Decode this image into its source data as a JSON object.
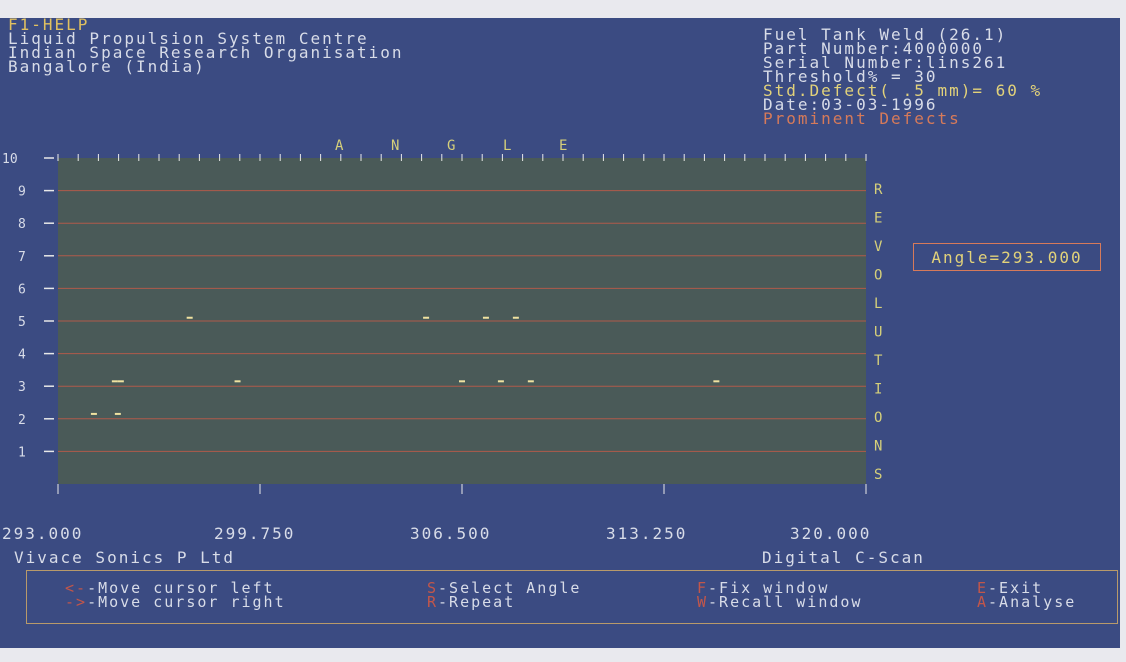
{
  "header": {
    "help": "F1-HELP",
    "line1": "Liquid Propulsion System Centre",
    "line2": "Indian Space Research Organisation",
    "line3": "Bangalore (India)"
  },
  "info": {
    "title": "Fuel Tank Weld (26.1)",
    "part": "Part Number:4000000",
    "serial": "Serial Number:lins261",
    "threshold": "Threshold% =  30",
    "defect": "Std.Defect( .5 mm)= 60 %",
    "date": "Date:03-03-1996",
    "prominent": "Prominent Defects"
  },
  "angle_readout": "Angle=293.000",
  "chart_data": {
    "type": "scatter",
    "title_top": "A N G L E",
    "right_label": "REVOLUTIONS",
    "right_letters": [
      "R",
      "E",
      "V",
      "O",
      "L",
      "U",
      "T",
      "I",
      "O",
      "N",
      "S"
    ],
    "top_letters": [
      "A",
      "N",
      "G",
      "L",
      "E"
    ],
    "x_ticks": [
      "293.000",
      "299.750",
      "306.500",
      "313.250",
      "320.000"
    ],
    "y_ticks": [
      "10",
      "9",
      "8",
      "7",
      "6",
      "5",
      "4",
      "3",
      "2",
      "1"
    ],
    "xlim": [
      293.0,
      320.0
    ],
    "ylim": [
      0,
      10
    ],
    "grid_lines": [
      1,
      2,
      3,
      4,
      5,
      6,
      7,
      8,
      9
    ],
    "points": [
      {
        "x": 294.2,
        "y": 2.15
      },
      {
        "x": 295.0,
        "y": 2.15
      },
      {
        "x": 294.9,
        "y": 3.15
      },
      {
        "x": 295.1,
        "y": 3.15
      },
      {
        "x": 297.4,
        "y": 5.1
      },
      {
        "x": 299.0,
        "y": 3.15
      },
      {
        "x": 305.3,
        "y": 5.1
      },
      {
        "x": 306.5,
        "y": 3.15
      },
      {
        "x": 307.3,
        "y": 5.1
      },
      {
        "x": 308.3,
        "y": 5.1
      },
      {
        "x": 307.8,
        "y": 3.15
      },
      {
        "x": 308.8,
        "y": 3.15
      },
      {
        "x": 315.0,
        "y": 3.15
      }
    ]
  },
  "footer": {
    "left": "Vivace Sonics P Ltd",
    "right": "Digital C-Scan"
  },
  "keys": [
    {
      "mark": "<-",
      "label": "-Move cursor left"
    },
    {
      "mark": "->",
      "label": "-Move cursor right"
    },
    {
      "mark": "S",
      "label": "-Select Angle"
    },
    {
      "mark": "R",
      "label": "-Repeat"
    },
    {
      "mark": "F",
      "label": "-Fix window"
    },
    {
      "mark": "W",
      "label": "-Recall window"
    },
    {
      "mark": "E",
      "label": "-Exit"
    },
    {
      "mark": "A",
      "label": "-Analyse"
    }
  ],
  "colors": {
    "screen_bg": "#3b4b82",
    "plot_bg": "#4a5a58",
    "grid": "#b05a4a",
    "point": "#f0e2a0"
  }
}
